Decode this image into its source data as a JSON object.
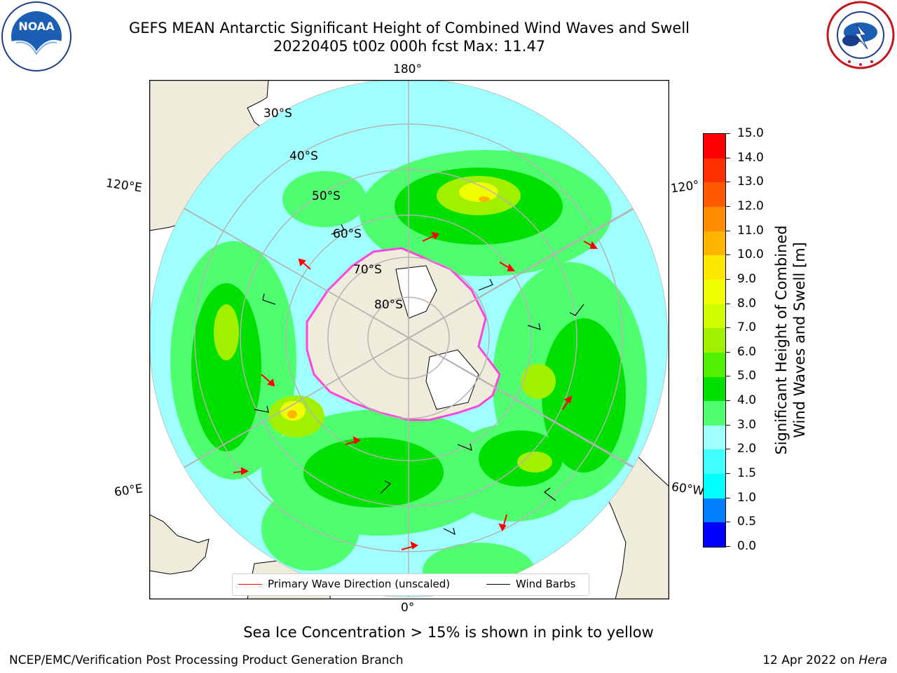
{
  "title": {
    "line1": "GEFS MEAN Antarctic Significant Height of Combined Wind Waves and Swell",
    "line2": "20220405 t00z 000h fcst   Max: 11.47"
  },
  "logos": {
    "left": {
      "text": "NOAA",
      "ring_text": "NATIONAL OCEANIC AND ATMOSPHERIC ADMINISTRATION · U.S. DEPARTMENT OF COMMERCE"
    },
    "right": {
      "ring_text": "NATIONAL WEATHER SERVICE"
    }
  },
  "map": {
    "longitude_labels": {
      "top": "180°",
      "bottom": "0°",
      "upper_left": "120°E",
      "lower_left": "60°E",
      "upper_right": "120°",
      "lower_right": "60°W"
    },
    "latitude_labels": [
      "30°S",
      "40°S",
      "50°S",
      "60°S",
      "70°S",
      "80°S"
    ],
    "colors": {
      "land": "#efecdc",
      "ice_shelf": "#ffffff",
      "sea_ice_edge": "#ff44dd",
      "grid": "#b3b3b3",
      "barb": "#000000",
      "arrow": "#ff0000"
    }
  },
  "legend": {
    "wave_direction": "Primary Wave Direction (unscaled)",
    "wind_barbs": "Wind Barbs"
  },
  "colorbar": {
    "label_line1": "Significant Height of Combined",
    "label_line2": "Wind Waves and Swell [m]",
    "ticks": [
      "0.0",
      "0.5",
      "1.0",
      "1.5",
      "2.0",
      "3.0",
      "4.0",
      "5.0",
      "6.0",
      "7.0",
      "8.0",
      "9.0",
      "10.0",
      "11.0",
      "12.0",
      "13.0",
      "14.0",
      "15.0"
    ],
    "colors": [
      "#0000ff",
      "#0080ff",
      "#00ffff",
      "#40ffff",
      "#a0ffff",
      "#50ff70",
      "#00e000",
      "#50f000",
      "#a0f000",
      "#d0ff00",
      "#f0ff00",
      "#ffe800",
      "#ffb400",
      "#ff8c00",
      "#ff5a00",
      "#ff3000",
      "#ff0000"
    ]
  },
  "note": "Sea Ice Concentration > 15% is shown in pink to yellow",
  "footer": {
    "left": "NCEP/EMC/Verification Post Processing Product Generation Branch",
    "right_date": "12 Apr 2022 on ",
    "right_host": "Hera"
  }
}
